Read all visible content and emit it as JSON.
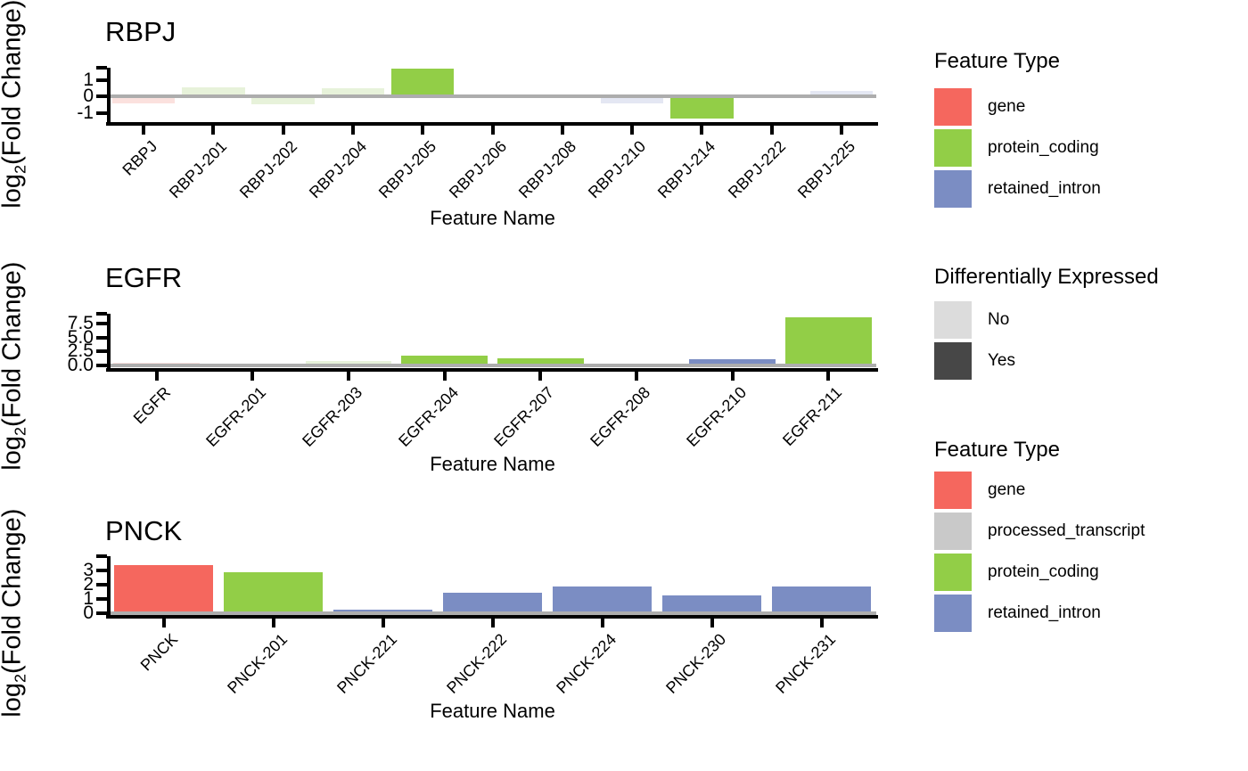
{
  "figure": {
    "ylabel_parts": {
      "pre": "log",
      "sub": "2",
      "post": "(Fold Change)"
    },
    "xlabel": "Feature Name"
  },
  "colors": {
    "fill": {
      "gene": {
        "yes": "#F5675E",
        "no": "#FBE1DE"
      },
      "protein_coding": {
        "yes": "#92CE47",
        "no": "#E7F2DA"
      },
      "retained_intron": {
        "yes": "#7B8DC3",
        "no": "#E4E7F3"
      },
      "processed_transcript": {
        "yes": "#C9C9C9",
        "no": "#E2E2E2"
      }
    },
    "differential_no": "#DCDCDC",
    "differential_yes": "#474747",
    "zero_line": "#ADADAD",
    "axis": "#000000",
    "background": "#FFFFFF"
  },
  "chart_data": [
    {
      "type": "bar",
      "title": "RBPJ",
      "xlabel": "Feature Name",
      "ylabel": "log2(Fold Change)",
      "grid": false,
      "legend_position": "right",
      "ylim": [
        -1.55,
        1.75
      ],
      "yticks": [
        {
          "v": -1,
          "label": "-1"
        },
        {
          "v": 0,
          "label": "0"
        },
        {
          "v": 1,
          "label": "1"
        }
      ],
      "bars": [
        {
          "label": "RBPJ",
          "value": -0.4,
          "feature_type": "gene",
          "differentially_expressed": false
        },
        {
          "label": "RBPJ-201",
          "value": 0.55,
          "feature_type": "protein_coding",
          "differentially_expressed": false
        },
        {
          "label": "RBPJ-202",
          "value": -0.45,
          "feature_type": "protein_coding",
          "differentially_expressed": false
        },
        {
          "label": "RBPJ-204",
          "value": 0.5,
          "feature_type": "protein_coding",
          "differentially_expressed": false
        },
        {
          "label": "RBPJ-205",
          "value": 1.7,
          "feature_type": "protein_coding",
          "differentially_expressed": true
        },
        {
          "label": "RBPJ-206",
          "value": 0,
          "feature_type": null,
          "differentially_expressed": false
        },
        {
          "label": "RBPJ-208",
          "value": 0,
          "feature_type": null,
          "differentially_expressed": false
        },
        {
          "label": "RBPJ-210",
          "value": -0.4,
          "feature_type": "retained_intron",
          "differentially_expressed": false
        },
        {
          "label": "RBPJ-214",
          "value": -1.35,
          "feature_type": "protein_coding",
          "differentially_expressed": true
        },
        {
          "label": "RBPJ-222",
          "value": 0,
          "feature_type": null,
          "differentially_expressed": false
        },
        {
          "label": "RBPJ-225",
          "value": 0.35,
          "feature_type": "retained_intron",
          "differentially_expressed": false
        }
      ]
    },
    {
      "type": "bar",
      "title": "EGFR",
      "xlabel": "Feature Name",
      "ylabel": "log2(Fold Change)",
      "grid": false,
      "legend_position": "right",
      "ylim": [
        -0.4,
        9.15
      ],
      "yticks": [
        {
          "v": 0,
          "label": "0.0"
        },
        {
          "v": 2.5,
          "label": "2.5"
        },
        {
          "v": 5,
          "label": "5.0"
        },
        {
          "v": 7.5,
          "label": "7.5"
        }
      ],
      "bars": [
        {
          "label": "EGFR",
          "value": 0.6,
          "feature_type": "gene",
          "differentially_expressed": false
        },
        {
          "label": "EGFR-201",
          "value": 0.45,
          "feature_type": "protein_coding",
          "differentially_expressed": false
        },
        {
          "label": "EGFR-203",
          "value": 0.85,
          "feature_type": "protein_coding",
          "differentially_expressed": false
        },
        {
          "label": "EGFR-204",
          "value": 1.8,
          "feature_type": "protein_coding",
          "differentially_expressed": true
        },
        {
          "label": "EGFR-207",
          "value": 1.3,
          "feature_type": "protein_coding",
          "differentially_expressed": true
        },
        {
          "label": "EGFR-208",
          "value": 0.35,
          "feature_type": "processed_transcript",
          "differentially_expressed": false
        },
        {
          "label": "EGFR-210",
          "value": 1.15,
          "feature_type": "retained_intron",
          "differentially_expressed": true
        },
        {
          "label": "EGFR-211",
          "value": 8.6,
          "feature_type": "protein_coding",
          "differentially_expressed": true
        }
      ]
    },
    {
      "type": "bar",
      "title": "PNCK",
      "xlabel": "Feature Name",
      "ylabel": "log2(Fold Change)",
      "grid": false,
      "legend_position": "right",
      "ylim": [
        -0.125,
        4.0
      ],
      "yticks": [
        {
          "v": 0,
          "label": "0"
        },
        {
          "v": 1,
          "label": "1"
        },
        {
          "v": 2,
          "label": "2"
        },
        {
          "v": 3,
          "label": "3"
        }
      ],
      "bars": [
        {
          "label": "PNCK",
          "value": 3.4,
          "feature_type": "gene",
          "differentially_expressed": true
        },
        {
          "label": "PNCK-201",
          "value": 2.9,
          "feature_type": "protein_coding",
          "differentially_expressed": true
        },
        {
          "label": "PNCK-221",
          "value": 0.25,
          "feature_type": "retained_intron",
          "differentially_expressed": true
        },
        {
          "label": "PNCK-222",
          "value": 1.45,
          "feature_type": "retained_intron",
          "differentially_expressed": true
        },
        {
          "label": "PNCK-224",
          "value": 1.9,
          "feature_type": "retained_intron",
          "differentially_expressed": true
        },
        {
          "label": "PNCK-230",
          "value": 1.25,
          "feature_type": "retained_intron",
          "differentially_expressed": true
        },
        {
          "label": "PNCK-231",
          "value": 1.9,
          "feature_type": "retained_intron",
          "differentially_expressed": true
        }
      ]
    }
  ],
  "legends": [
    {
      "title": "Feature Type",
      "items": [
        {
          "label": "gene",
          "color": "#F5675E"
        },
        {
          "label": "protein_coding",
          "color": "#92CE47"
        },
        {
          "label": "retained_intron",
          "color": "#7B8DC3"
        }
      ]
    },
    {
      "title": "Differentially Expressed",
      "items": [
        {
          "label": "No",
          "color": "#DCDCDC"
        },
        {
          "label": "Yes",
          "color": "#474747"
        }
      ]
    },
    {
      "title": "Feature Type",
      "items": [
        {
          "label": "gene",
          "color": "#F5675E"
        },
        {
          "label": "processed_transcript",
          "color": "#C9C9C9"
        },
        {
          "label": "protein_coding",
          "color": "#92CE47"
        },
        {
          "label": "retained_intron",
          "color": "#7B8DC3"
        }
      ]
    }
  ]
}
